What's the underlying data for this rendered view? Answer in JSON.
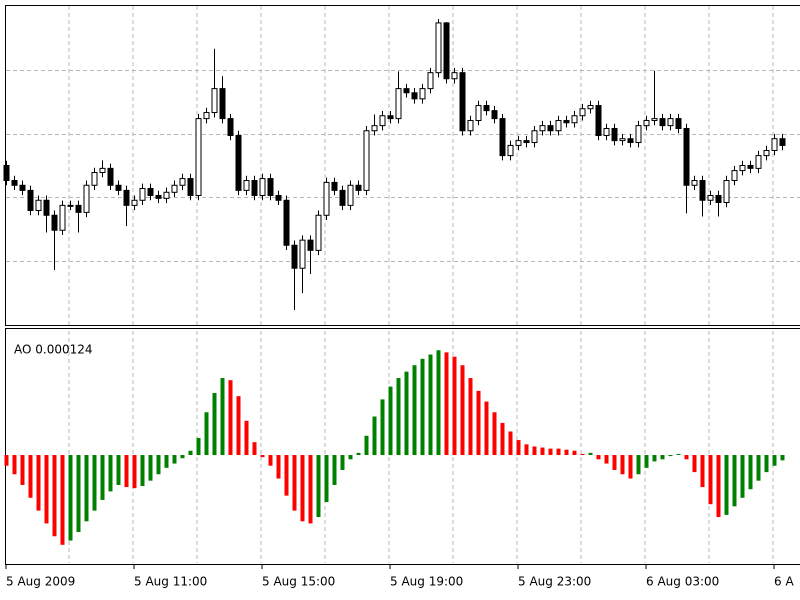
{
  "chart_data": [
    {
      "type": "candlestick",
      "categories": [
        "5 Aug 2009",
        null,
        null,
        null,
        null,
        null,
        null,
        null,
        null,
        null,
        null,
        null,
        null,
        null,
        null,
        null,
        "5 Aug 11:00",
        null,
        null,
        null,
        null,
        null,
        null,
        null,
        null,
        null,
        null,
        null,
        null,
        null,
        null,
        null,
        "5 Aug 15:00",
        null,
        null,
        null,
        null,
        null,
        null,
        null,
        null,
        null,
        null,
        null,
        null,
        null,
        null,
        null,
        "5 Aug 19:00",
        null,
        null,
        null,
        null,
        null,
        null,
        null,
        null,
        null,
        null,
        null,
        null,
        null,
        null,
        null,
        "5 Aug 23:00",
        null,
        null,
        null,
        null,
        null,
        null,
        null,
        null,
        null,
        null,
        null,
        null,
        null,
        null,
        null,
        "6 Aug 03:00",
        null,
        null,
        null,
        null,
        null,
        null,
        null,
        null,
        null,
        null,
        null,
        null,
        null,
        null,
        null,
        "6 A",
        null
      ],
      "open": [
        50.0,
        45.3,
        43.8,
        42.2,
        35.9,
        39.1,
        34.4,
        29.7,
        37.5,
        37.5,
        35.3,
        43.8,
        47.8,
        49.1,
        43.8,
        42.2,
        37.5,
        39.1,
        42.8,
        40.6,
        39.7,
        41.6,
        43.8,
        45.9,
        40.6,
        64.7,
        66.6,
        74.1,
        64.7,
        59.4,
        42.2,
        45.3,
        40.6,
        45.9,
        40.6,
        39.1,
        25.0,
        17.8,
        26.6,
        23.4,
        34.4,
        44.7,
        42.2,
        37.5,
        43.8,
        42.2,
        60.9,
        62.5,
        65.6,
        64.7,
        74.1,
        72.8,
        70.9,
        74.1,
        79.1,
        94.7,
        77.2,
        79.1,
        60.9,
        64.1,
        68.8,
        67.2,
        64.7,
        53.1,
        56.3,
        57.8,
        57.2,
        60.9,
        62.5,
        60.9,
        64.1,
        63.4,
        65.6,
        67.8,
        68.8,
        59.4,
        61.6,
        57.8,
        58.4,
        57.2,
        62.5,
        64.1,
        64.7,
        62.5,
        64.7,
        61.6,
        43.8,
        45.3,
        39.1,
        40.6,
        38.4,
        45.3,
        48.4,
        50.0,
        49.1,
        53.1,
        54.7,
        58.4
      ],
      "high": [
        51.5,
        46.8,
        45.3,
        43.7,
        40.6,
        40.6,
        35.9,
        39.0,
        39.0,
        39.0,
        45.3,
        49.3,
        51.6,
        50.6,
        45.3,
        43.7,
        40.6,
        44.3,
        44.3,
        42.1,
        43.1,
        45.3,
        47.4,
        47.4,
        66.2,
        68.1,
        86.6,
        78.0,
        66.2,
        60.9,
        46.8,
        46.8,
        47.4,
        47.4,
        42.1,
        40.6,
        26.5,
        28.1,
        28.1,
        35.9,
        46.2,
        46.2,
        43.7,
        45.3,
        45.3,
        62.4,
        66.0,
        67.1,
        67.1,
        79.5,
        75.6,
        74.3,
        75.6,
        80.6,
        95.9,
        95.0,
        80.6,
        80.6,
        65.6,
        70.3,
        70.3,
        68.7,
        66.2,
        57.8,
        59.3,
        59.3,
        62.4,
        64.0,
        64.0,
        65.6,
        65.6,
        67.1,
        69.3,
        70.3,
        70.3,
        63.1,
        63.1,
        59.9,
        59.9,
        64.0,
        65.6,
        79.7,
        66.2,
        66.2,
        66.2,
        63.1,
        46.8,
        46.8,
        42.1,
        42.1,
        46.8,
        49.9,
        51.5,
        51.5,
        54.6,
        56.2,
        59.9,
        59.9
      ],
      "low": [
        43.8,
        42.3,
        40.7,
        34.4,
        34.4,
        29.0,
        17.2,
        28.2,
        36.0,
        29.0,
        33.8,
        42.3,
        46.3,
        42.3,
        40.7,
        31.0,
        36.0,
        37.6,
        39.1,
        38.2,
        38.2,
        40.1,
        42.3,
        39.1,
        39.1,
        63.2,
        65.1,
        63.2,
        57.9,
        40.7,
        40.7,
        39.1,
        39.1,
        39.1,
        37.6,
        23.5,
        4.7,
        10.0,
        16.0,
        21.9,
        32.9,
        40.7,
        36.0,
        36.0,
        40.7,
        40.7,
        59.4,
        61.0,
        63.2,
        63.2,
        71.3,
        69.4,
        69.4,
        72.6,
        77.6,
        75.7,
        75.7,
        59.4,
        59.4,
        62.6,
        65.7,
        63.2,
        51.6,
        51.6,
        54.8,
        55.7,
        55.7,
        59.4,
        59.4,
        59.4,
        61.9,
        61.9,
        64.1,
        66.3,
        57.9,
        57.9,
        56.3,
        56.3,
        55.7,
        55.7,
        61.0,
        62.6,
        61.0,
        61.0,
        60.1,
        35.0,
        42.3,
        34.0,
        37.6,
        34.0,
        36.9,
        43.8,
        46.9,
        47.6,
        47.6,
        51.6,
        53.2,
        54.8
      ],
      "close": [
        45.3,
        43.8,
        42.2,
        35.9,
        39.1,
        34.4,
        29.7,
        37.5,
        37.5,
        35.3,
        43.8,
        47.8,
        49.1,
        43.8,
        42.2,
        37.5,
        39.1,
        42.8,
        40.6,
        39.7,
        41.6,
        43.8,
        45.9,
        40.6,
        64.7,
        66.6,
        74.1,
        64.7,
        59.4,
        42.2,
        45.3,
        40.6,
        45.9,
        40.6,
        39.1,
        25.0,
        17.8,
        26.6,
        23.4,
        34.4,
        44.7,
        42.2,
        37.5,
        43.8,
        42.2,
        60.9,
        62.5,
        65.6,
        64.7,
        74.1,
        72.8,
        70.9,
        74.1,
        79.1,
        94.7,
        77.2,
        79.1,
        60.9,
        64.1,
        68.8,
        67.2,
        64.7,
        53.1,
        56.3,
        57.8,
        57.2,
        60.9,
        62.5,
        60.9,
        64.1,
        63.4,
        65.6,
        67.8,
        68.8,
        59.4,
        61.6,
        57.8,
        58.4,
        57.2,
        62.5,
        64.1,
        64.7,
        62.5,
        64.7,
        61.6,
        43.8,
        45.3,
        39.1,
        40.6,
        38.4,
        45.3,
        48.4,
        50.0,
        49.1,
        53.1,
        54.7,
        58.4,
        56.3
      ],
      "ylim": [
        0,
        100
      ],
      "ygrid": [
        20,
        40,
        60,
        80
      ],
      "bull_color": "#ffffff",
      "bear_color": "#000000"
    },
    {
      "type": "ao-histogram",
      "label": "AO 0.000124",
      "values": [
        -10,
        -18,
        -28,
        -40,
        -52,
        -64,
        -76,
        -84,
        -80,
        -72,
        -62,
        -52,
        -42,
        -34,
        -28,
        -30,
        -31,
        -29,
        -24,
        -18,
        -12,
        -8,
        -3,
        4,
        16,
        40,
        58,
        72,
        70,
        55,
        32,
        12,
        -2,
        -10,
        -22,
        -38,
        -52,
        -62,
        -64,
        -58,
        -44,
        -28,
        -14,
        -4,
        2,
        18,
        36,
        52,
        64,
        72,
        78,
        84,
        90,
        94,
        98,
        96,
        92,
        84,
        72,
        60,
        50,
        40,
        30,
        22,
        14,
        10,
        8,
        7,
        6,
        6,
        5,
        4,
        1,
        2,
        -4,
        -8,
        -14,
        -18,
        -22,
        -18,
        -12,
        -6,
        -4,
        -1,
        1,
        -4,
        -16,
        -30,
        -46,
        -58,
        -56,
        -48,
        -40,
        -32,
        -24,
        -16,
        -10,
        -5
      ],
      "ylim": [
        -101,
        116
      ],
      "up_color": "#008000",
      "down_color": "#ff0000"
    }
  ]
}
